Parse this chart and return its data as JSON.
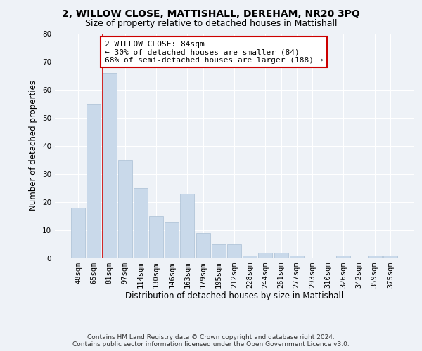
{
  "title": "2, WILLOW CLOSE, MATTISHALL, DEREHAM, NR20 3PQ",
  "subtitle": "Size of property relative to detached houses in Mattishall",
  "xlabel": "Distribution of detached houses by size in Mattishall",
  "ylabel": "Number of detached properties",
  "categories": [
    "48sqm",
    "65sqm",
    "81sqm",
    "97sqm",
    "114sqm",
    "130sqm",
    "146sqm",
    "163sqm",
    "179sqm",
    "195sqm",
    "212sqm",
    "228sqm",
    "244sqm",
    "261sqm",
    "277sqm",
    "293sqm",
    "310sqm",
    "326sqm",
    "342sqm",
    "359sqm",
    "375sqm"
  ],
  "values": [
    18,
    55,
    66,
    35,
    25,
    15,
    13,
    23,
    9,
    5,
    5,
    1,
    2,
    2,
    1,
    0,
    0,
    1,
    0,
    1,
    1
  ],
  "bar_color": "#c9d9ea",
  "bar_edge_color": "#aabfd4",
  "annotation_text_line1": "2 WILLOW CLOSE: 84sqm",
  "annotation_text_line2": "← 30% of detached houses are smaller (84)",
  "annotation_text_line3": "68% of semi-detached houses are larger (188) →",
  "annotation_box_color": "#ffffff",
  "annotation_border_color": "#cc0000",
  "vline_color": "#cc0000",
  "ylim": [
    0,
    80
  ],
  "yticks": [
    0,
    10,
    20,
    30,
    40,
    50,
    60,
    70,
    80
  ],
  "footer_line1": "Contains HM Land Registry data © Crown copyright and database right 2024.",
  "footer_line2": "Contains public sector information licensed under the Open Government Licence v3.0.",
  "bg_color": "#eef2f7",
  "grid_color": "#ffffff",
  "title_fontsize": 10,
  "subtitle_fontsize": 9,
  "axis_label_fontsize": 8.5,
  "tick_fontsize": 7.5,
  "footer_fontsize": 6.5,
  "annotation_fontsize": 8
}
